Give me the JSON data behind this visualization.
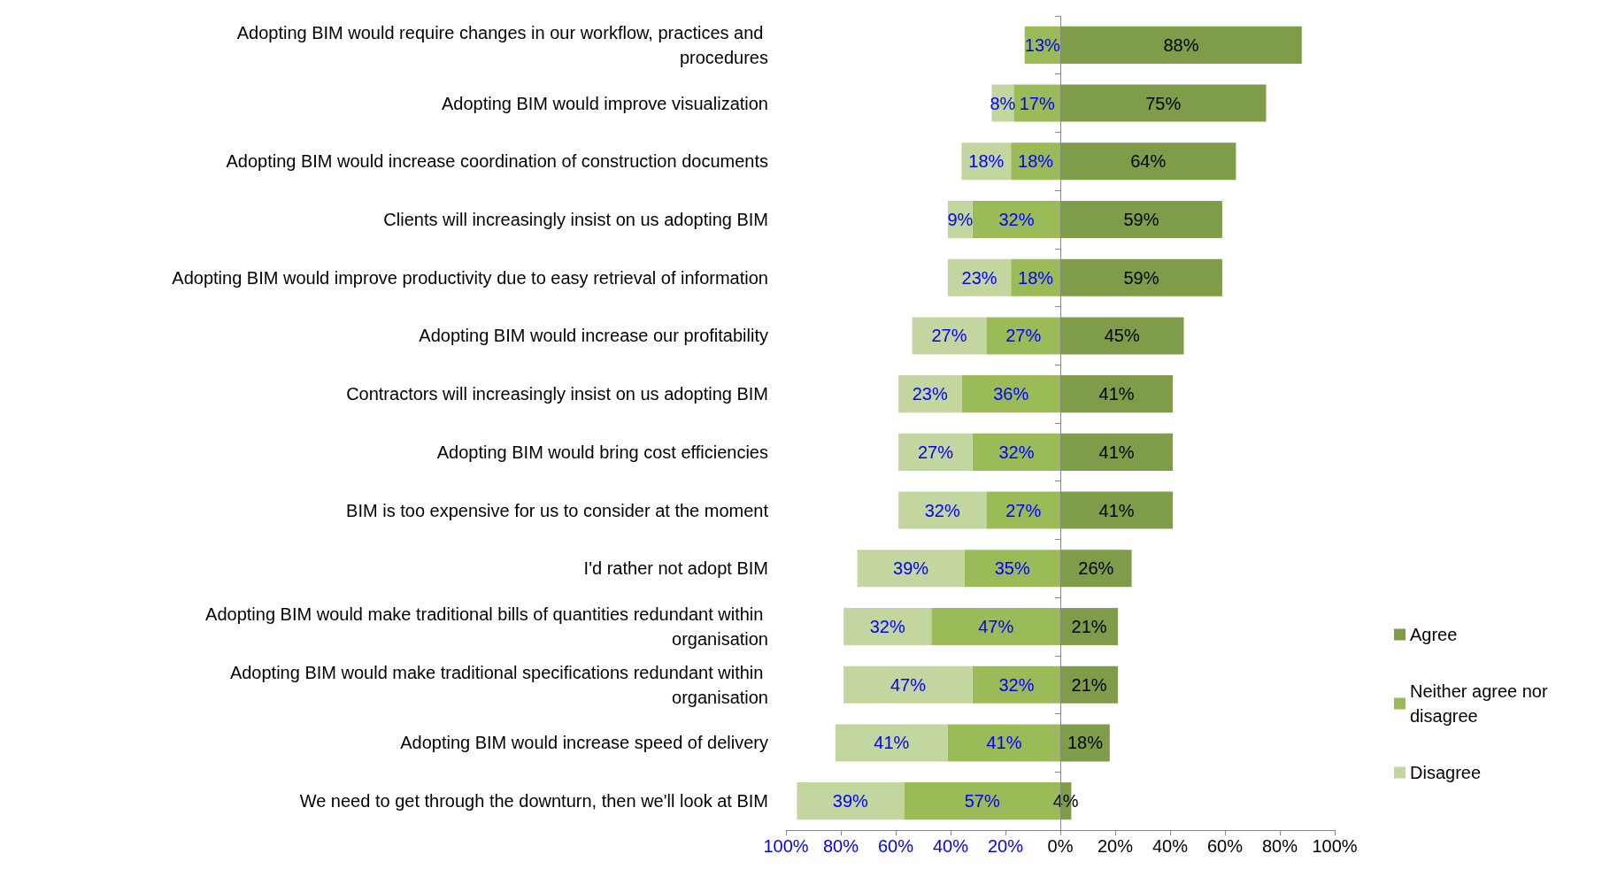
{
  "chart_data": {
    "type": "bar",
    "orientation": "horizontal",
    "categories": [
      "Adopting BIM would require changes in our workflow, practices and procedures",
      "Adopting BIM would improve visualization",
      "Adopting BIM would increase coordination of construction documents",
      "Clients will increasingly insist on us adopting BIM",
      "Adopting BIM would improve productivity due to easy retrieval of information",
      "Adopting BIM would increase our profitability",
      "Contractors will increasingly insist on us adopting BIM",
      "Adopting BIM would bring cost efficiencies",
      "BIM is too expensive for us to consider at the moment",
      "I'd rather not adopt BIM",
      "Adopting BIM would make traditional bills of quantities redundant within organisation",
      "Adopting BIM would make traditional specifications redundant within organisation",
      "Adopting BIM would increase speed of delivery",
      "We need to get through the downturn, then we'll look at BIM"
    ],
    "series": [
      {
        "name": "Agree",
        "color": "#7f9c48",
        "values": [
          88,
          75,
          64,
          59,
          59,
          45,
          41,
          41,
          41,
          26,
          21,
          21,
          18,
          4
        ],
        "base": [
          0,
          0,
          0,
          0,
          0,
          0,
          0,
          0,
          0,
          0,
          0,
          0,
          0,
          0
        ],
        "value_labels": [
          "88%",
          "75%",
          "64%",
          "59%",
          "59%",
          "45%",
          "41%",
          "41%",
          "41%",
          "26%",
          "21%",
          "21%",
          "18%",
          "4%"
        ]
      },
      {
        "name": "Neither agree nor disagree",
        "color": "#9bbb59",
        "values": [
          13,
          17,
          18,
          32,
          18,
          27,
          36,
          32,
          27,
          35,
          47,
          32,
          41,
          57
        ],
        "base": [
          -13,
          -17,
          -18,
          -32,
          -18,
          -27,
          -36,
          -32,
          -27,
          -35,
          -47,
          -32,
          -41,
          -57
        ],
        "value_labels": [
          "13%",
          "17%",
          "18%",
          "32%",
          "18%",
          "27%",
          "36%",
          "32%",
          "27%",
          "35%",
          "47%",
          "32%",
          "41%",
          "57%"
        ]
      },
      {
        "name": "Disagree",
        "color": "#c4d6a0",
        "values": [
          null,
          8,
          18,
          9,
          23,
          27,
          23,
          27,
          32,
          39,
          32,
          47,
          41,
          39
        ],
        "base": [
          null,
          -25,
          -36,
          -41,
          -41,
          -54,
          -59,
          -59,
          -59,
          -74,
          -79,
          -79,
          -82,
          -96
        ],
        "value_labels": [
          null,
          "8%",
          "18%",
          "9%",
          "23%",
          "27%",
          "23%",
          "27%",
          "32%",
          "39%",
          "32%",
          "47%",
          "41%",
          "39%"
        ]
      }
    ],
    "xlim": [
      -100,
      100
    ],
    "xticks": [
      {
        "value": -100,
        "label": "100%"
      },
      {
        "value": -80,
        "label": "80%"
      },
      {
        "value": -60,
        "label": "60%"
      },
      {
        "value": -40,
        "label": "40%"
      },
      {
        "value": -20,
        "label": "20%"
      },
      {
        "value": 0,
        "label": "0%"
      },
      {
        "value": 20,
        "label": "20%"
      },
      {
        "value": 40,
        "label": "40%"
      },
      {
        "value": 60,
        "label": "60%"
      },
      {
        "value": 80,
        "label": "80%"
      },
      {
        "value": 100,
        "label": "100%"
      }
    ],
    "ref_lines": [
      {
        "axis": "x",
        "value": 0,
        "color": "#888888",
        "line_style": "solid"
      }
    ],
    "grid": false,
    "legend": "right"
  }
}
